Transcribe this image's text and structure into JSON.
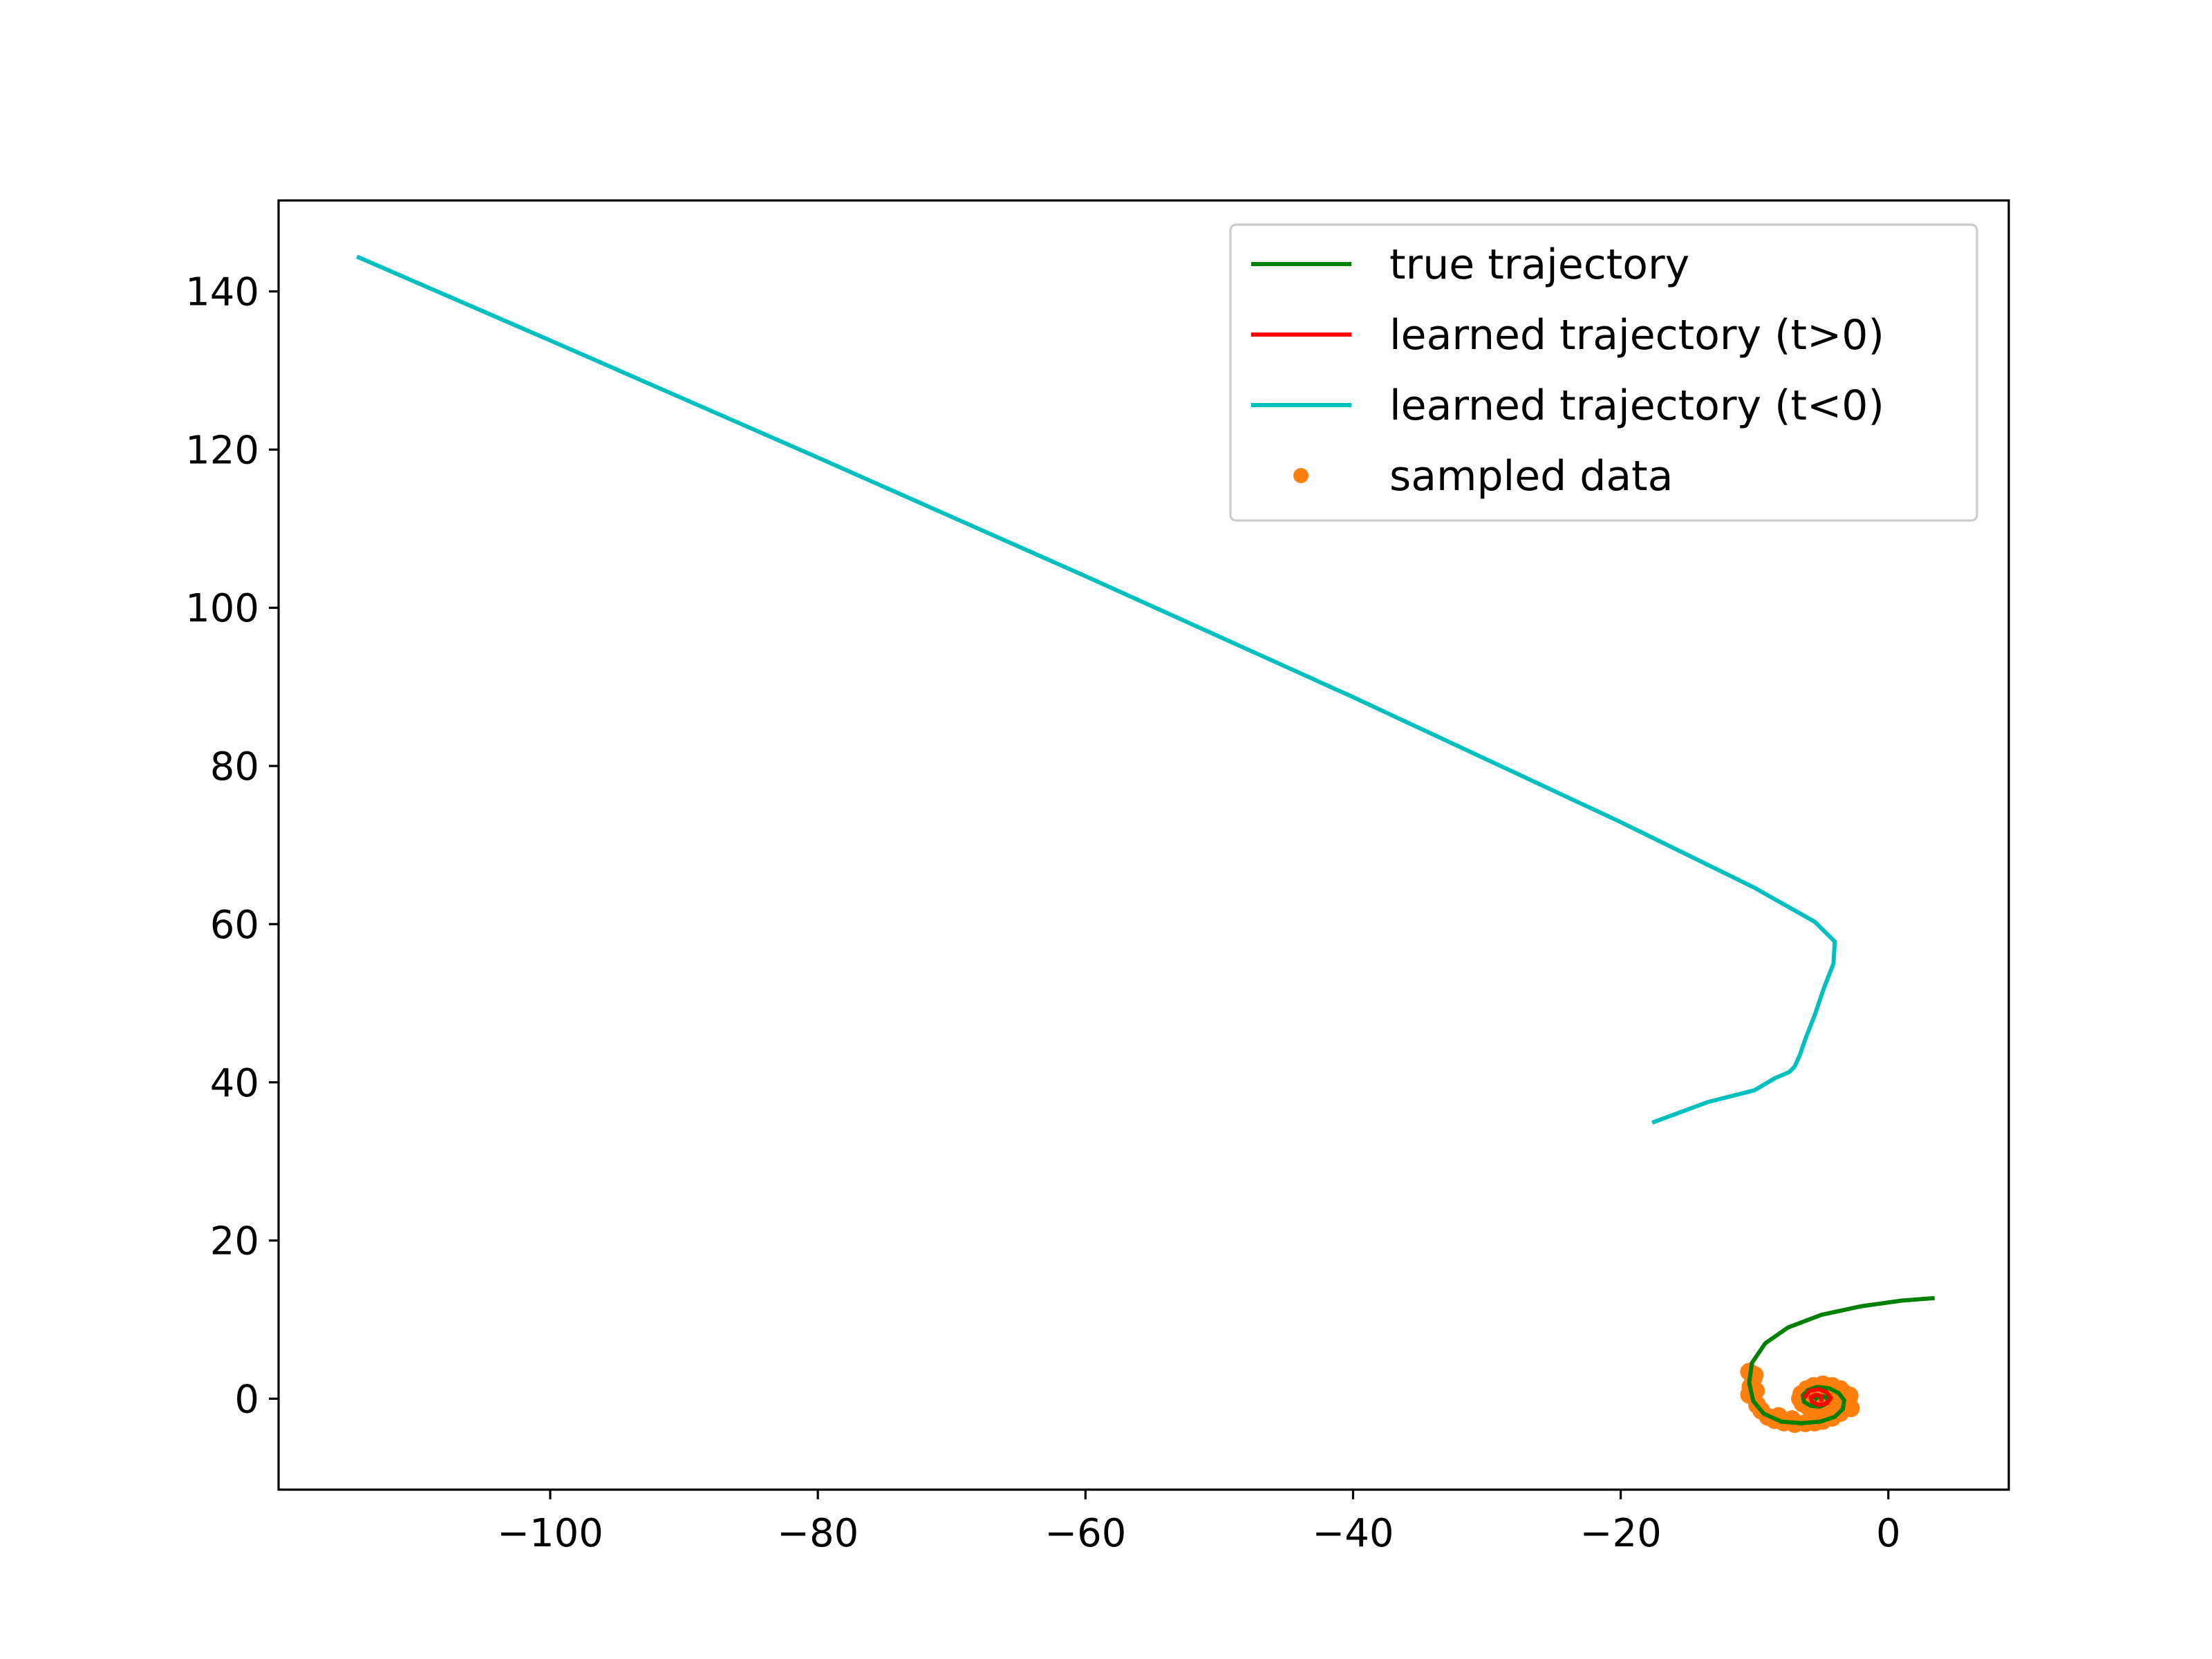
{
  "chart_data": {
    "type": "line",
    "title": "",
    "xlabel": "",
    "ylabel": "",
    "xlim": [
      -120.3,
      9.0
    ],
    "ylim": [
      -11.5,
      151.5
    ],
    "xticks": [
      -100,
      -80,
      -60,
      -40,
      -20,
      0
    ],
    "xtick_labels": [
      "−100",
      "−80",
      "−60",
      "−40",
      "−20",
      "0"
    ],
    "yticks": [
      0,
      20,
      40,
      60,
      80,
      100,
      120,
      140
    ],
    "ytick_labels": [
      "0",
      "20",
      "40",
      "60",
      "80",
      "100",
      "120",
      "140"
    ],
    "grid": false,
    "legend_position": "top-right",
    "series": [
      {
        "name": "true trajectory",
        "color": "#008000",
        "kind": "line",
        "points": [
          [
            3.3,
            12.7
          ],
          [
            1,
            12.4
          ],
          [
            -2,
            11.7
          ],
          [
            -5,
            10.6
          ],
          [
            -7.5,
            9.0
          ],
          [
            -9.2,
            7.0
          ],
          [
            -10.2,
            4.5
          ],
          [
            -10.4,
            2.0
          ],
          [
            -10.1,
            -0.3
          ],
          [
            -9.3,
            -1.9
          ],
          [
            -8.0,
            -2.9
          ],
          [
            -6.5,
            -3.1
          ],
          [
            -5.1,
            -2.9
          ],
          [
            -4.0,
            -2.3
          ],
          [
            -3.4,
            -1.3
          ],
          [
            -3.3,
            -0.2
          ],
          [
            -3.7,
            0.7
          ],
          [
            -4.4,
            1.3
          ],
          [
            -5.3,
            1.5
          ],
          [
            -6.0,
            1.1
          ],
          [
            -6.4,
            0.4
          ],
          [
            -6.3,
            -0.4
          ],
          [
            -5.8,
            -0.9
          ],
          [
            -5.1,
            -1.0
          ],
          [
            -4.6,
            -0.6
          ],
          [
            -4.5,
            -0.1
          ],
          [
            -4.8,
            0.3
          ],
          [
            -5.2,
            0.3
          ],
          [
            -5.4,
            0.0
          ]
        ]
      },
      {
        "name": "learned trajectory (t>0)",
        "color": "#ff0000",
        "kind": "line",
        "points": [
          [
            -6.2,
            0.3
          ],
          [
            -5.9,
            1.0
          ],
          [
            -5.2,
            1.2
          ],
          [
            -4.6,
            0.8
          ],
          [
            -4.3,
            0.1
          ],
          [
            -4.6,
            -0.6
          ],
          [
            -5.2,
            -0.8
          ],
          [
            -5.7,
            -0.4
          ],
          [
            -5.8,
            0.2
          ],
          [
            -5.4,
            0.5
          ],
          [
            -5.0,
            0.3
          ],
          [
            -5.0,
            -0.1
          ]
        ]
      },
      {
        "name": "learned trajectory (t<0)",
        "color": "#00bfbf",
        "kind": "line",
        "points": [
          [
            -114.3,
            144.3
          ],
          [
            -100,
            133.8
          ],
          [
            -80,
            119.0
          ],
          [
            -60,
            104.0
          ],
          [
            -40,
            88.7
          ],
          [
            -20,
            72.9
          ],
          [
            -10,
            64.6
          ],
          [
            -5.5,
            60.3
          ],
          [
            -4.0,
            57.8
          ],
          [
            -4.1,
            55.0
          ],
          [
            -4.8,
            52.0
          ],
          [
            -5.5,
            48.5
          ],
          [
            -6.2,
            45.5
          ],
          [
            -6.6,
            43.5
          ],
          [
            -7.0,
            42.0
          ],
          [
            -7.4,
            41.3
          ],
          [
            -8.5,
            40.5
          ],
          [
            -10,
            39.0
          ],
          [
            -13.5,
            37.5
          ],
          [
            -17.5,
            35.0
          ]
        ]
      },
      {
        "name": "sampled data",
        "color": "#ff7f0e",
        "kind": "scatter",
        "points": [
          [
            -10.4,
            0.5
          ],
          [
            -10.3,
            1.5
          ],
          [
            -10.1,
            2.5
          ],
          [
            -10.4,
            3.4
          ],
          [
            -9.8,
            -0.8
          ],
          [
            -9.5,
            -1.5
          ],
          [
            -9.0,
            -2.3
          ],
          [
            -8.5,
            -2.7
          ],
          [
            -7.8,
            -3.0
          ],
          [
            -7.0,
            -3.2
          ],
          [
            -6.2,
            -3.1
          ],
          [
            -5.5,
            -3.0
          ],
          [
            -4.9,
            -2.8
          ],
          [
            -4.2,
            -2.4
          ],
          [
            -3.6,
            -1.8
          ],
          [
            -3.2,
            -1.0
          ],
          [
            -3.0,
            -0.2
          ],
          [
            -3.2,
            0.6
          ],
          [
            -3.6,
            1.2
          ],
          [
            -4.2,
            1.6
          ],
          [
            -4.9,
            1.8
          ],
          [
            -5.6,
            1.6
          ],
          [
            -6.1,
            1.2
          ],
          [
            -6.5,
            0.6
          ],
          [
            -6.6,
            0.0
          ],
          [
            -6.4,
            -0.6
          ],
          [
            -6.0,
            -1.0
          ],
          [
            -5.4,
            -1.2
          ],
          [
            -4.8,
            -1.0
          ],
          [
            -4.4,
            -0.6
          ],
          [
            -4.3,
            0.0
          ],
          [
            -4.5,
            0.5
          ],
          [
            -5.0,
            0.7
          ],
          [
            -5.5,
            0.4
          ],
          [
            -5.6,
            -0.1
          ],
          [
            -5.2,
            -0.4
          ],
          [
            -2.8,
            -1.2
          ],
          [
            -2.9,
            0.4
          ],
          [
            -7.2,
            -2.6
          ],
          [
            -8.2,
            -2.2
          ],
          [
            -9.9,
            1.0
          ],
          [
            -10.0,
            3.0
          ]
        ]
      }
    ],
    "legend": [
      {
        "label": "true trajectory",
        "kind": "line",
        "color": "#008000"
      },
      {
        "label": "learned trajectory (t>0)",
        "kind": "line",
        "color": "#ff0000"
      },
      {
        "label": "learned trajectory (t<0)",
        "kind": "line",
        "color": "#00bfbf"
      },
      {
        "label": "sampled data",
        "kind": "dot",
        "color": "#ff7f0e"
      }
    ]
  }
}
